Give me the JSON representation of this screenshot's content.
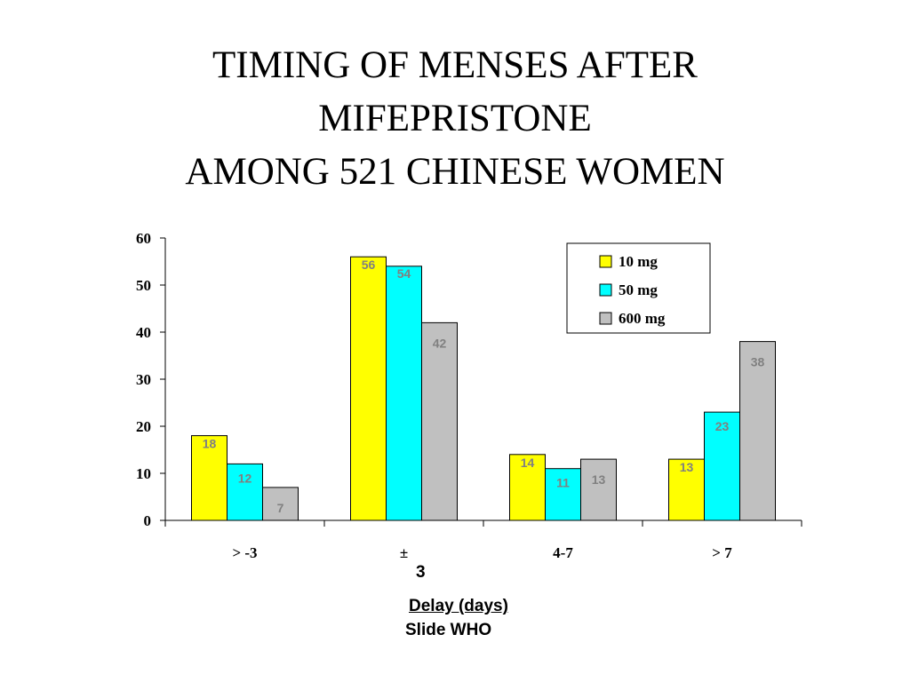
{
  "slide": {
    "title_lines": [
      "TIMING OF MENSES AFTER",
      "MIFEPRISTONE",
      "AMONG 521 CHINESE WOMEN"
    ],
    "stray_text": "3",
    "credit": "Slide WHO"
  },
  "chart_data": {
    "type": "bar",
    "title": "",
    "xlabel": "Delay (days)",
    "ylabel": "",
    "ylim": [
      0,
      60
    ],
    "yticks": [
      0,
      10,
      20,
      30,
      40,
      50,
      60
    ],
    "categories": [
      "> -3",
      "±",
      "4-7",
      "> 7"
    ],
    "series": [
      {
        "name": "10 mg",
        "color": "#FFFF00",
        "values": [
          18,
          56,
          14,
          13
        ]
      },
      {
        "name": "50 mg",
        "color": "#00FFFF",
        "values": [
          12,
          54,
          11,
          23
        ]
      },
      {
        "name": "600 mg",
        "color": "#C0C0C0",
        "values": [
          7,
          42,
          13,
          38
        ]
      }
    ],
    "grid": false,
    "legend": "top-right"
  }
}
